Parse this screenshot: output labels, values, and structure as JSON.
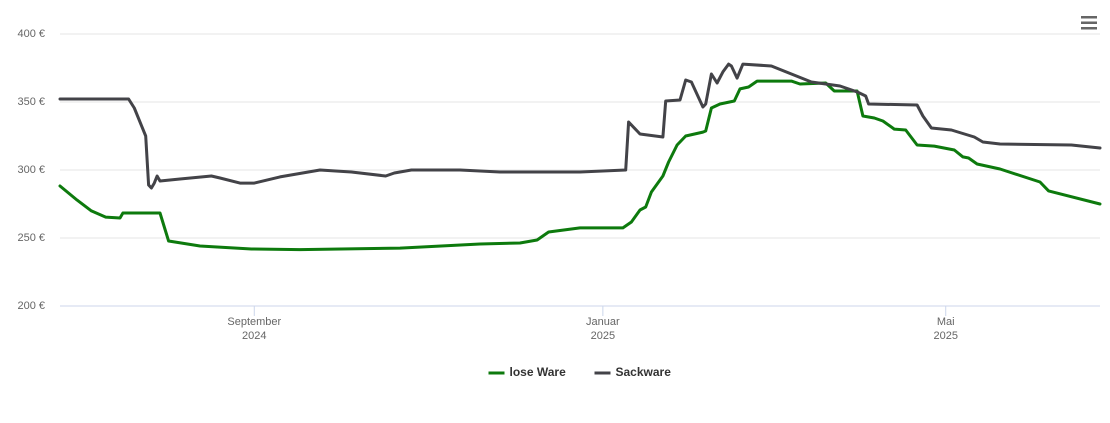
{
  "chart_data": {
    "type": "line",
    "xlim": [
      "2024-06-25",
      "2025-06-24"
    ],
    "xticks": [
      {
        "value": "2024-09",
        "label": [
          "September",
          "2024"
        ]
      },
      {
        "value": "2025-01",
        "label": [
          "Januar",
          "2025"
        ]
      },
      {
        "value": "2025-05",
        "label": [
          "Mai",
          "2025"
        ]
      }
    ],
    "ylim": [
      200,
      400
    ],
    "yticks": [
      {
        "value": 200,
        "label": "200 €"
      },
      {
        "value": 250,
        "label": "250 €"
      },
      {
        "value": 300,
        "label": "300 €"
      },
      {
        "value": 350,
        "label": "350 €"
      },
      {
        "value": 400,
        "label": "400 €"
      }
    ],
    "grid": true,
    "legend": "bottom",
    "series": [
      {
        "name": "lose Ware",
        "color": "#0d7a0d",
        "x": [
          "2024-06-25",
          "2024-07-01",
          "2024-07-06",
          "2024-07-11",
          "2024-07-16",
          "2024-07-17",
          "2024-07-30",
          "2024-08-02",
          "2024-08-13",
          "2024-08-31",
          "2024-09-17",
          "2024-10-22",
          "2024-11-19",
          "2024-12-03",
          "2024-12-09",
          "2024-12-13",
          "2024-12-24",
          "2025-01-08",
          "2025-01-11",
          "2025-01-14",
          "2025-01-16",
          "2025-01-18",
          "2025-01-22",
          "2025-01-24",
          "2025-01-27",
          "2025-01-30",
          "2025-02-05",
          "2025-02-06",
          "2025-02-08",
          "2025-02-11",
          "2025-02-16",
          "2025-02-18",
          "2025-02-21",
          "2025-02-24",
          "2025-03-08",
          "2025-03-11",
          "2025-03-20",
          "2025-03-23",
          "2025-03-31",
          "2025-04-02",
          "2025-04-06",
          "2025-04-09",
          "2025-04-13",
          "2025-04-17",
          "2025-04-21",
          "2025-04-27",
          "2025-05-04",
          "2025-05-07",
          "2025-05-09",
          "2025-05-12",
          "2025-05-20",
          "2025-06-03",
          "2025-06-06",
          "2025-06-24"
        ],
        "values": [
          288.2,
          277.9,
          269.9,
          265.4,
          264.7,
          268.4,
          268.4,
          247.8,
          244.1,
          241.9,
          241.5,
          242.6,
          245.6,
          246.3,
          248.5,
          254.4,
          257.4,
          257.4,
          261.8,
          270.6,
          272.8,
          283.8,
          295.6,
          305.9,
          318.4,
          325.0,
          327.9,
          328.7,
          345.6,
          348.5,
          350.7,
          359.6,
          361.0,
          365.4,
          365.4,
          363.2,
          364.0,
          358.1,
          358.1,
          339.7,
          338.2,
          336.0,
          330.1,
          329.4,
          318.4,
          317.6,
          314.7,
          309.6,
          308.8,
          304.4,
          300.7,
          291.2,
          284.6,
          275.0
        ]
      },
      {
        "name": "Sackware",
        "color": "#434348",
        "x": [
          "2024-06-25",
          "2024-07-19",
          "2024-07-21",
          "2024-07-25",
          "2024-07-26",
          "2024-07-27",
          "2024-07-28",
          "2024-07-29",
          "2024-07-30",
          "2024-08-06",
          "2024-08-17",
          "2024-08-20",
          "2024-08-27",
          "2024-09-01",
          "2024-09-10",
          "2024-09-24",
          "2024-10-05",
          "2024-10-17",
          "2024-10-20",
          "2024-10-26",
          "2024-11-12",
          "2024-11-26",
          "2024-12-24",
          "2025-01-09",
          "2025-01-10",
          "2025-01-14",
          "2025-01-22",
          "2025-01-23",
          "2025-01-28",
          "2025-01-30",
          "2025-02-01",
          "2025-02-05",
          "2025-02-06",
          "2025-02-08",
          "2025-02-10",
          "2025-02-12",
          "2025-02-14",
          "2025-02-15",
          "2025-02-17",
          "2025-02-19",
          "2025-03-01",
          "2025-03-08",
          "2025-03-15",
          "2025-03-25",
          "2025-03-31",
          "2025-04-03",
          "2025-04-04",
          "2025-04-21",
          "2025-04-23",
          "2025-04-26",
          "2025-05-03",
          "2025-05-11",
          "2025-05-14",
          "2025-05-20",
          "2025-06-14",
          "2025-06-24"
        ],
        "values": [
          352.2,
          352.2,
          345.6,
          325.0,
          289.0,
          286.8,
          290.4,
          295.6,
          291.9,
          293.4,
          295.6,
          294.1,
          290.4,
          290.4,
          294.9,
          300.0,
          298.5,
          295.6,
          297.8,
          300.0,
          300.0,
          298.5,
          298.5,
          300.0,
          335.3,
          326.5,
          324.3,
          350.7,
          351.5,
          366.2,
          364.7,
          346.3,
          348.5,
          370.6,
          364.0,
          372.1,
          377.9,
          376.5,
          367.6,
          377.9,
          376.5,
          370.6,
          364.7,
          361.8,
          357.4,
          354.4,
          348.5,
          347.8,
          339.7,
          330.9,
          329.4,
          324.3,
          320.6,
          319.1,
          318.4,
          316.2
        ]
      }
    ]
  }
}
